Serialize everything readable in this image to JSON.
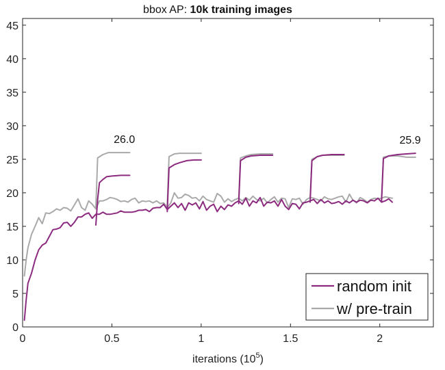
{
  "chart_data": {
    "type": "line",
    "title_prefix": "bbox AP: ",
    "title_bold": "10k training images",
    "xlabel": "iterations (10",
    "xlabel_exp": "5",
    "xlabel_suffix": ")",
    "ylabel": "",
    "xlim": [
      0,
      2.3
    ],
    "ylim": [
      0,
      46
    ],
    "xticks": [
      0,
      0.5,
      1,
      1.5,
      2
    ],
    "xtick_labels": [
      "0",
      "0.5",
      "1",
      "1.5",
      "2"
    ],
    "yticks": [
      0,
      5,
      10,
      15,
      20,
      25,
      30,
      35,
      40,
      45
    ],
    "ytick_labels": [
      "0",
      "5",
      "10",
      "15",
      "20",
      "25",
      "30",
      "35",
      "40",
      "45"
    ],
    "grid": false,
    "legend": "bottom-right",
    "series": [
      {
        "name": "random init",
        "color": "#8B2A7E",
        "segments": [
          [
            [
              0.01,
              1
            ],
            [
              0.02,
              4
            ],
            [
              0.03,
              6.5
            ],
            [
              0.05,
              8
            ],
            [
              0.07,
              10
            ],
            [
              0.09,
              11.5
            ],
            [
              0.11,
              12.2
            ],
            [
              0.13,
              12.5
            ],
            [
              0.15,
              13.5
            ],
            [
              0.17,
              14.5
            ],
            [
              0.19,
              14.6
            ],
            [
              0.21,
              14.8
            ],
            [
              0.23,
              15.5
            ],
            [
              0.25,
              15.6
            ],
            [
              0.27,
              15
            ],
            [
              0.29,
              15.6
            ],
            [
              0.31,
              16.4
            ],
            [
              0.33,
              16.4
            ],
            [
              0.35,
              16.8
            ],
            [
              0.37,
              17
            ],
            [
              0.39,
              16.2
            ],
            [
              0.41,
              16.8
            ],
            [
              0.43,
              16.8
            ],
            [
              0.45,
              17.1
            ],
            [
              0.47,
              16.8
            ],
            [
              0.49,
              16.8
            ],
            [
              0.51,
              16.9
            ],
            [
              0.53,
              17
            ],
            [
              0.55,
              17.3
            ],
            [
              0.57,
              17.1
            ],
            [
              0.59,
              17.1
            ],
            [
              0.61,
              17.1
            ],
            [
              0.63,
              17.2
            ],
            [
              0.65,
              17.4
            ],
            [
              0.67,
              17.4
            ],
            [
              0.69,
              17.5
            ],
            [
              0.71,
              17.2
            ],
            [
              0.73,
              17.7
            ],
            [
              0.75,
              17.8
            ],
            [
              0.77,
              17.8
            ],
            [
              0.79,
              18.3
            ],
            [
              0.81,
              17.5
            ],
            [
              0.83,
              18
            ],
            [
              0.85,
              18.5
            ],
            [
              0.87,
              17.8
            ],
            [
              0.89,
              18.4
            ],
            [
              0.91,
              17.4
            ],
            [
              0.93,
              18.5
            ],
            [
              0.95,
              18.2
            ],
            [
              0.97,
              18.5
            ],
            [
              0.99,
              17.6
            ],
            [
              1.01,
              18.7
            ],
            [
              1.03,
              17.4
            ],
            [
              1.05,
              18
            ],
            [
              1.07,
              18.3
            ],
            [
              1.09,
              17.2
            ],
            [
              1.11,
              18
            ],
            [
              1.13,
              17.5
            ],
            [
              1.15,
              18.2
            ],
            [
              1.17,
              18
            ],
            [
              1.19,
              18.5
            ],
            [
              1.21,
              18.8
            ],
            [
              1.23,
              18.3
            ],
            [
              1.25,
              19.2
            ],
            [
              1.27,
              18
            ],
            [
              1.29,
              18.8
            ],
            [
              1.31,
              18.5
            ],
            [
              1.33,
              19.3
            ],
            [
              1.35,
              18
            ],
            [
              1.37,
              18.6
            ],
            [
              1.39,
              18.5
            ],
            [
              1.41,
              18.8
            ],
            [
              1.43,
              18
            ],
            [
              1.45,
              19
            ],
            [
              1.47,
              18
            ],
            [
              1.49,
              17.5
            ],
            [
              1.51,
              18.4
            ],
            [
              1.53,
              18.3
            ],
            [
              1.55,
              17.6
            ],
            [
              1.57,
              18.5
            ],
            [
              1.59,
              18.6
            ],
            [
              1.61,
              18.8
            ],
            [
              1.63,
              19
            ],
            [
              1.65,
              18.4
            ],
            [
              1.67,
              19
            ],
            [
              1.69,
              18.5
            ],
            [
              1.71,
              18.8
            ],
            [
              1.73,
              18.4
            ],
            [
              1.75,
              18.5
            ],
            [
              1.77,
              18.7
            ],
            [
              1.79,
              18.3
            ],
            [
              1.81,
              18.8
            ],
            [
              1.83,
              18.5
            ],
            [
              1.85,
              18.9
            ],
            [
              1.87,
              18.6
            ],
            [
              1.89,
              18.9
            ],
            [
              1.91,
              18.8
            ],
            [
              1.93,
              18.5
            ],
            [
              1.95,
              18.9
            ],
            [
              1.97,
              18.8
            ],
            [
              1.99,
              19.2
            ],
            [
              2.01,
              18.6
            ],
            [
              2.03,
              18.8
            ],
            [
              2.05,
              19.1
            ],
            [
              2.07,
              18.6
            ]
          ],
          [
            [
              0.41,
              15.2
            ],
            [
              0.42,
              19
            ],
            [
              0.43,
              21.5
            ],
            [
              0.45,
              22
            ],
            [
              0.47,
              22.4
            ],
            [
              0.5,
              22.5
            ],
            [
              0.55,
              22.6
            ],
            [
              0.6,
              22.6
            ]
          ],
          [
            [
              0.81,
              17.2
            ],
            [
              0.82,
              23.7
            ],
            [
              0.85,
              24.2
            ],
            [
              0.88,
              24.5
            ],
            [
              0.92,
              24.8
            ],
            [
              0.96,
              24.9
            ],
            [
              1.0,
              24.9
            ]
          ],
          [
            [
              1.21,
              18.4
            ],
            [
              1.22,
              24.8
            ],
            [
              1.25,
              25.3
            ],
            [
              1.28,
              25.5
            ],
            [
              1.33,
              25.6
            ],
            [
              1.4,
              25.6
            ]
          ],
          [
            [
              1.61,
              18.6
            ],
            [
              1.62,
              24.8
            ],
            [
              1.65,
              25.4
            ],
            [
              1.68,
              25.6
            ],
            [
              1.73,
              25.7
            ],
            [
              1.8,
              25.7
            ]
          ],
          [
            [
              2.01,
              18.6
            ],
            [
              2.02,
              25.1
            ],
            [
              2.05,
              25.5
            ],
            [
              2.1,
              25.7
            ],
            [
              2.15,
              25.8
            ],
            [
              2.2,
              25.9
            ]
          ]
        ]
      },
      {
        "name": "w/ pre-train",
        "color": "#A9A9A9",
        "segments": [
          [
            [
              0.01,
              7.6
            ],
            [
              0.02,
              10
            ],
            [
              0.03,
              11.8
            ],
            [
              0.05,
              13.8
            ],
            [
              0.07,
              15
            ],
            [
              0.09,
              16.3
            ],
            [
              0.11,
              15.4
            ],
            [
              0.13,
              17
            ],
            [
              0.15,
              16.9
            ],
            [
              0.17,
              17.2
            ],
            [
              0.19,
              17.6
            ],
            [
              0.21,
              17.4
            ],
            [
              0.23,
              17.8
            ],
            [
              0.25,
              17.7
            ],
            [
              0.27,
              17.3
            ],
            [
              0.29,
              18.2
            ],
            [
              0.31,
              19.1
            ],
            [
              0.33,
              17.8
            ],
            [
              0.35,
              17.4
            ],
            [
              0.37,
              18.8
            ],
            [
              0.39,
              18.3
            ],
            [
              0.41,
              17.6
            ],
            [
              0.43,
              18.8
            ],
            [
              0.45,
              18.8
            ],
            [
              0.47,
              19
            ],
            [
              0.49,
              19.3
            ],
            [
              0.51,
              19.2
            ],
            [
              0.53,
              19
            ],
            [
              0.55,
              18.7
            ],
            [
              0.57,
              18.8
            ],
            [
              0.59,
              18.6
            ],
            [
              0.61,
              19
            ],
            [
              0.63,
              19.2
            ],
            [
              0.65,
              18.5
            ],
            [
              0.67,
              18.8
            ],
            [
              0.69,
              18.7
            ],
            [
              0.71,
              18.8
            ],
            [
              0.73,
              18.5
            ],
            [
              0.75,
              18.8
            ],
            [
              0.77,
              18.4
            ],
            [
              0.79,
              18.5
            ],
            [
              0.81,
              17.8
            ],
            [
              0.83,
              18.5
            ],
            [
              0.85,
              20
            ],
            [
              0.87,
              19.2
            ],
            [
              0.89,
              19.3
            ],
            [
              0.91,
              19.8
            ],
            [
              0.93,
              19.6
            ],
            [
              0.95,
              19.2
            ],
            [
              0.97,
              19.3
            ],
            [
              0.99,
              18.8
            ],
            [
              1.01,
              19.5
            ],
            [
              1.03,
              19
            ],
            [
              1.05,
              18.8
            ],
            [
              1.07,
              18.6
            ],
            [
              1.09,
              19.9
            ],
            [
              1.11,
              19.5
            ],
            [
              1.13,
              18.6
            ],
            [
              1.15,
              19.1
            ],
            [
              1.17,
              18.7
            ],
            [
              1.19,
              19
            ],
            [
              1.21,
              19.2
            ],
            [
              1.23,
              18.8
            ],
            [
              1.25,
              19.3
            ],
            [
              1.27,
              18.9
            ],
            [
              1.29,
              19.5
            ],
            [
              1.31,
              19
            ],
            [
              1.33,
              18.8
            ],
            [
              1.35,
              19.2
            ],
            [
              1.37,
              18.5
            ],
            [
              1.39,
              19
            ],
            [
              1.41,
              19.4
            ],
            [
              1.43,
              18.6
            ],
            [
              1.45,
              19.2
            ],
            [
              1.47,
              19.1
            ],
            [
              1.49,
              17.8
            ],
            [
              1.51,
              19.1
            ],
            [
              1.53,
              19
            ],
            [
              1.55,
              19.2
            ],
            [
              1.57,
              18.3
            ],
            [
              1.59,
              19
            ],
            [
              1.61,
              19.3
            ],
            [
              1.63,
              19.2
            ],
            [
              1.65,
              19
            ],
            [
              1.67,
              18.8
            ],
            [
              1.69,
              19.4
            ],
            [
              1.71,
              19.1
            ],
            [
              1.73,
              19
            ],
            [
              1.75,
              19.2
            ],
            [
              1.77,
              19.4
            ],
            [
              1.79,
              19.5
            ],
            [
              1.81,
              18.6
            ],
            [
              1.83,
              19.8
            ],
            [
              1.85,
              18.9
            ],
            [
              1.87,
              18.5
            ],
            [
              1.89,
              19.3
            ],
            [
              1.91,
              19
            ],
            [
              1.93,
              18.6
            ],
            [
              1.95,
              19
            ],
            [
              1.97,
              19.2
            ],
            [
              1.99,
              19.1
            ],
            [
              2.01,
              19.2
            ],
            [
              2.03,
              19.4
            ],
            [
              2.05,
              19.3
            ],
            [
              2.07,
              19.2
            ]
          ],
          [
            [
              0.41,
              17.8
            ],
            [
              0.42,
              25.2
            ],
            [
              0.45,
              25.7
            ],
            [
              0.48,
              26
            ],
            [
              0.52,
              26
            ],
            [
              0.6,
              26
            ]
          ],
          [
            [
              0.81,
              18.2
            ],
            [
              0.82,
              25.4
            ],
            [
              0.85,
              25.8
            ],
            [
              0.88,
              25.9
            ],
            [
              0.93,
              25.9
            ],
            [
              1.0,
              25.9
            ]
          ],
          [
            [
              1.21,
              19.2
            ],
            [
              1.22,
              25.2
            ],
            [
              1.25,
              25.5
            ],
            [
              1.28,
              25.7
            ],
            [
              1.33,
              25.8
            ],
            [
              1.4,
              25.8
            ]
          ],
          [
            [
              1.61,
              19.3
            ],
            [
              1.62,
              25
            ],
            [
              1.65,
              25.4
            ],
            [
              1.68,
              25.6
            ],
            [
              1.73,
              25.6
            ],
            [
              1.8,
              25.6
            ]
          ],
          [
            [
              2.01,
              19.2
            ],
            [
              2.02,
              25.3
            ],
            [
              2.05,
              25.5
            ],
            [
              2.1,
              25.5
            ],
            [
              2.15,
              25.3
            ],
            [
              2.2,
              25.3
            ]
          ]
        ]
      }
    ],
    "annotations": [
      {
        "text": "26.0",
        "x": 0.57,
        "y": 26
      },
      {
        "text": "25.9",
        "x": 2.17,
        "y": 25.9
      }
    ]
  }
}
